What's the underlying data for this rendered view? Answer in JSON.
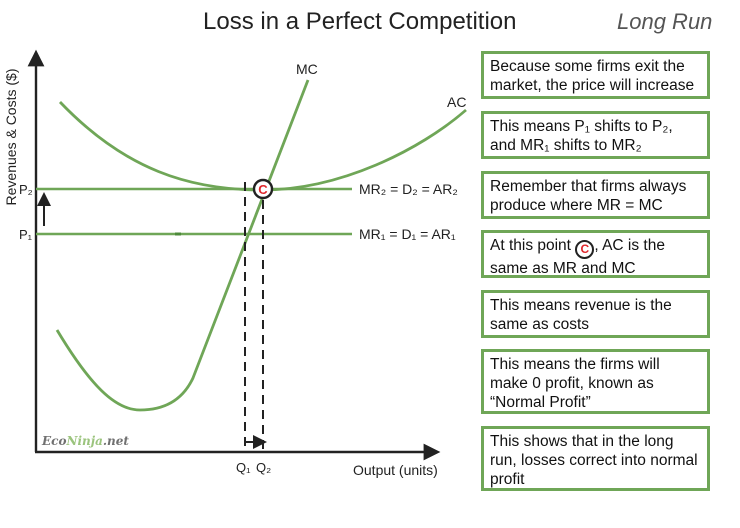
{
  "title": "Loss in a Perfect Competition",
  "subtitle": "Long Run",
  "axes": {
    "y_label": "Revenues & Costs ($)",
    "x_label": "Output (units)"
  },
  "curves": {
    "mc": "MC",
    "ac": "AC",
    "mr2": "MR₂ = D₂ = AR₂",
    "mr1": "MR₁ = D₁ = AR₁"
  },
  "price_labels": {
    "p2": "P₂",
    "p1": "P₁"
  },
  "quantity_labels": {
    "q1": "Q₁",
    "q2": "Q₂"
  },
  "point_marker": "C",
  "watermark": {
    "part1": "Eco",
    "part2": "Ninja",
    "part3": ".net"
  },
  "notes": [
    {
      "text": "Because some firms exit the market, the price will increase"
    },
    {
      "text": "This means P₁ shifts to P₂, and MR₁ shifts to MR₂"
    },
    {
      "text": "Remember that firms always produce where MR = MC"
    },
    {
      "before": "At this point",
      "marker": "C",
      "after": ", AC is the same as MR and MC"
    },
    {
      "text": "This means revenue is the same as costs"
    },
    {
      "text": "This means the firms will make 0 profit, known as “Normal Profit”"
    },
    {
      "text": "This shows that in the long run, losses correct into normal profit"
    }
  ],
  "colors": {
    "curve": "#6fa657",
    "axis": "#222222",
    "marker": "#e0262b"
  }
}
